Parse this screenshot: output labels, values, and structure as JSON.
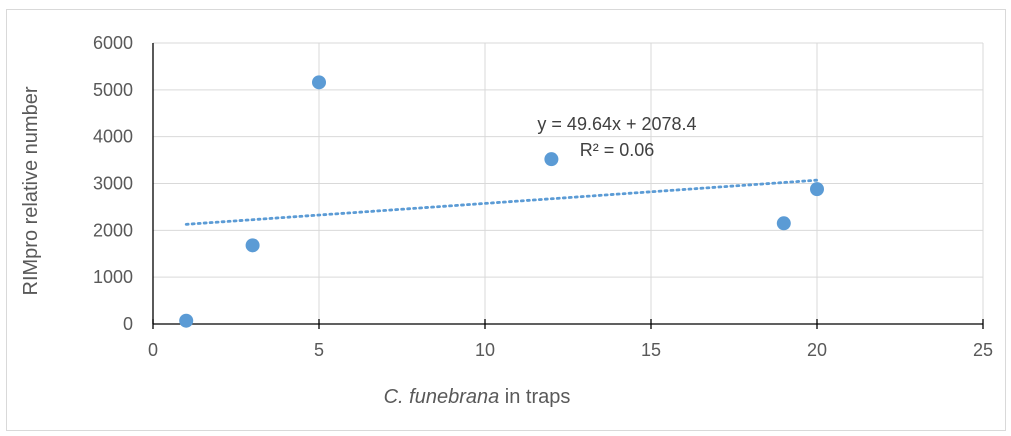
{
  "chart_data": {
    "type": "scatter",
    "xlabel": {
      "italic": "C. funebrana",
      "rest": " in traps"
    },
    "ylabel": "RIMpro relative number",
    "xlim": [
      0,
      25
    ],
    "ylim": [
      0,
      6000
    ],
    "xticks": [
      0,
      5,
      10,
      15,
      20,
      25
    ],
    "yticks": [
      0,
      1000,
      2000,
      3000,
      4000,
      5000,
      6000
    ],
    "grid": true,
    "marker_color": "#5b9bd5",
    "series": [
      {
        "points": [
          {
            "x": 1,
            "y": 70
          },
          {
            "x": 3,
            "y": 1680
          },
          {
            "x": 5,
            "y": 5160
          },
          {
            "x": 12,
            "y": 3520
          },
          {
            "x": 19,
            "y": 2150
          },
          {
            "x": 20,
            "y": 2880
          }
        ]
      }
    ],
    "trendline": {
      "type": "linear",
      "style": "dotted",
      "color": "#5b9bd5",
      "slope": 49.64,
      "intercept": 2078.4,
      "x_range": [
        1,
        20
      ],
      "equation": "y = 49.64x + 2078.4",
      "r_squared": "R² = 0.06"
    }
  }
}
